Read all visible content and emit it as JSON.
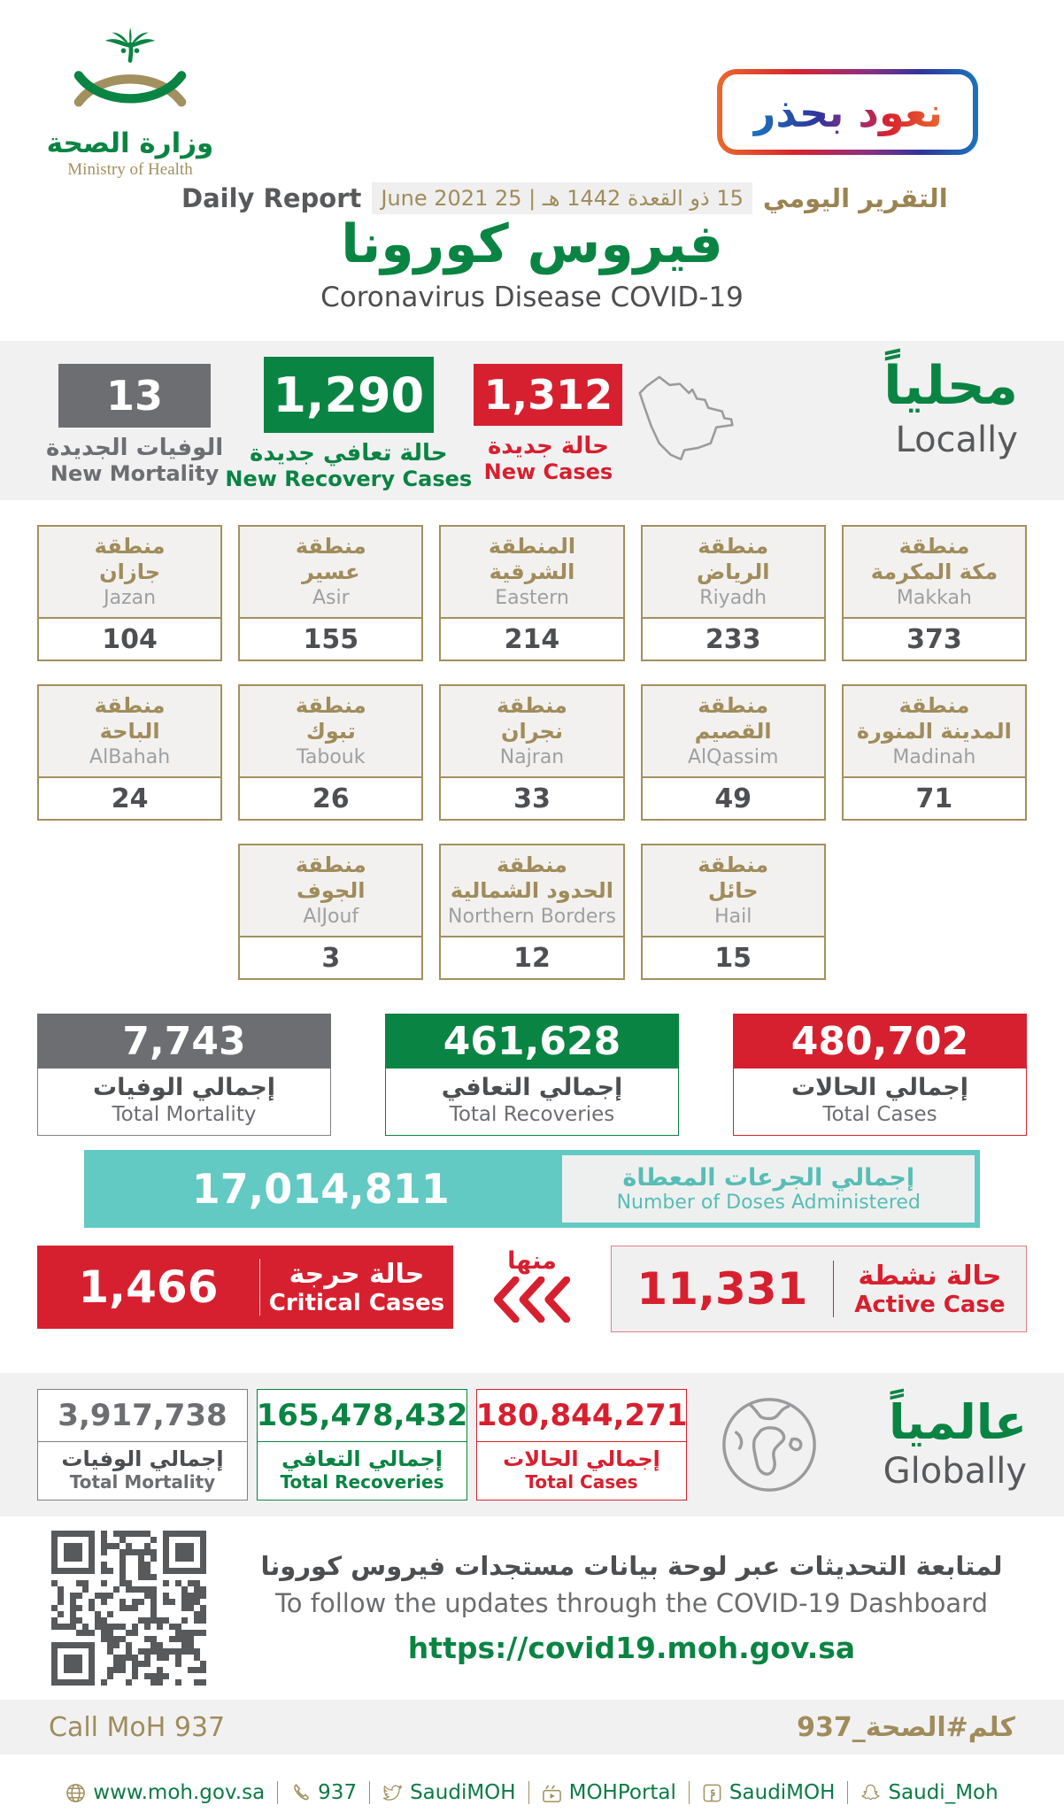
{
  "header": {
    "logo_ar": "وزارة الصحة",
    "logo_en": "Ministry of Health",
    "badge": "نعود بحذر",
    "report_en": "Daily Report",
    "report_chip": "15 ذو القعدة 1442 هـ | 25 June 2021",
    "report_ar": "التقرير اليومي",
    "title_ar": "فيروس كورونا",
    "title_en": "Coronavirus Disease COVID-19"
  },
  "locally": {
    "heading_ar": "محلياً",
    "heading_en": "Locally",
    "mortality": {
      "value": "13",
      "label_ar": "الوفيات الجديدة",
      "label_en": "New Mortality"
    },
    "recovery": {
      "value": "1,290",
      "label_ar": "حالة تعافي جديدة",
      "label_en": "New Recovery Cases"
    },
    "cases": {
      "value": "1,312",
      "label_ar": "حالة جديدة",
      "label_en": "New Cases"
    }
  },
  "regions": {
    "row1": [
      {
        "ar1": "منطقة",
        "ar2": "جازان",
        "en": "Jazan",
        "value": "104"
      },
      {
        "ar1": "منطقة",
        "ar2": "عسير",
        "en": "Asir",
        "value": "155"
      },
      {
        "ar1": "المنطقة",
        "ar2": "الشرقية",
        "en": "Eastern",
        "value": "214"
      },
      {
        "ar1": "منطقة",
        "ar2": "الرياض",
        "en": "Riyadh",
        "value": "233"
      },
      {
        "ar1": "منطقة",
        "ar2": "مكة المكرمة",
        "en": "Makkah",
        "value": "373"
      }
    ],
    "row2": [
      {
        "ar1": "منطقة",
        "ar2": "الباحة",
        "en": "AlBahah",
        "value": "24"
      },
      {
        "ar1": "منطقة",
        "ar2": "تبوك",
        "en": "Tabouk",
        "value": "26"
      },
      {
        "ar1": "منطقة",
        "ar2": "نجران",
        "en": "Najran",
        "value": "33"
      },
      {
        "ar1": "منطقة",
        "ar2": "القصيم",
        "en": "AlQassim",
        "value": "49"
      },
      {
        "ar1": "منطقة",
        "ar2": "المدينة المنورة",
        "en": "Madinah",
        "value": "71"
      }
    ],
    "row3": [
      {
        "ar1": "منطقة",
        "ar2": "الجوف",
        "en": "AlJouf",
        "value": "3"
      },
      {
        "ar1": "منطقة",
        "ar2": "الحدود الشمالية",
        "en": "Northern Borders",
        "value": "12"
      },
      {
        "ar1": "منطقة",
        "ar2": "حائل",
        "en": "Hail",
        "value": "15"
      }
    ]
  },
  "totals": {
    "mortality": {
      "value": "7,743",
      "label_ar": "إجمالي الوفيات",
      "label_en": "Total Mortality"
    },
    "recovery": {
      "value": "461,628",
      "label_ar": "إجمالي التعافي",
      "label_en": "Total Recoveries"
    },
    "cases": {
      "value": "480,702",
      "label_ar": "إجمالي الحالات",
      "label_en": "Total Cases"
    }
  },
  "doses": {
    "value": "17,014,811",
    "label_ar": "إجمالي الجرعات المعطاة",
    "label_en": "Number of Doses Administered"
  },
  "critical": {
    "value": "1,466",
    "label_ar": "حالة حرجة",
    "label_en": "Critical Cases"
  },
  "of_which_ar": "منها",
  "active": {
    "value": "11,331",
    "label_ar": "حالة نشطة",
    "label_en": "Active Case"
  },
  "globally": {
    "heading_ar": "عالمياً",
    "heading_en": "Globally",
    "mortality": {
      "value": "3,917,738",
      "label_ar": "إجمالي الوفيات",
      "label_en": "Total Mortality"
    },
    "recovery": {
      "value": "165,478,432",
      "label_ar": "إجمالي التعافي",
      "label_en": "Total Recoveries"
    },
    "cases": {
      "value": "180,844,271",
      "label_ar": "إجمالي الحالات",
      "label_en": "Total Cases"
    }
  },
  "dashboard": {
    "line_ar": "لمتابعة التحديثات عبر لوحة بيانات مستجدات فيروس كورونا",
    "line_en": "To follow the updates through the COVID-19 Dashboard",
    "url": "https://covid19.moh.gov.sa"
  },
  "callband": {
    "left": "Call MoH 937",
    "right": "كلم#الصحة_937"
  },
  "footer": {
    "website": "www.moh.gov.sa",
    "phone": "937",
    "twitter": "SaudiMOH",
    "youtube": "MOHPortal",
    "facebook": "SaudiMOH",
    "snapchat": "Saudi_Moh"
  },
  "colors": {
    "green": "#0a8443",
    "gold": "#a3905f",
    "gray": "#6d6e71",
    "red": "#d7202f",
    "teal": "#62c9c3",
    "band_gray": "#f1f1f2"
  }
}
